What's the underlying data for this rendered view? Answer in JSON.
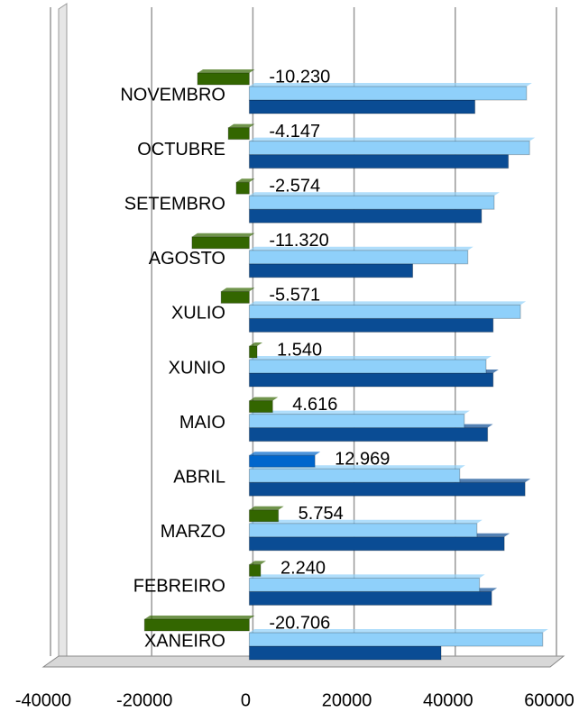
{
  "chart_data": {
    "type": "bar",
    "orientation": "horizontal",
    "categories": [
      "XANEIRO",
      "FEBREIRO",
      "MARZO",
      "ABRIL",
      "MAIO",
      "XUNIO",
      "XULIO",
      "AGOSTO",
      "SETEMBRO",
      "OCTUBRE",
      "NOVEMBRO"
    ],
    "series": [
      {
        "color": "#336600",
        "colors": [
          "#336600",
          "#336600",
          "#336600",
          "#0066cc",
          "#336600",
          "#336600",
          "#336600",
          "#336600",
          "#336600",
          "#336600",
          "#336600"
        ],
        "values": [
          -20706,
          2240,
          5754,
          12969,
          4616,
          1540,
          -5571,
          -11320,
          -2574,
          -4147,
          -10230
        ],
        "value_labels": [
          "-20.706",
          "2.240",
          "5.754",
          "12.969",
          "4.616",
          "1.540",
          "-5.571",
          "-11.320",
          "-2.574",
          "-4.147",
          "-10.230"
        ]
      },
      {
        "color": "#8fd0fa",
        "values": [
          58000,
          45500,
          45000,
          41600,
          42500,
          46800,
          53600,
          43200,
          48400,
          55400,
          54800
        ]
      },
      {
        "color": "#0a4c94",
        "values": [
          37900,
          47900,
          50400,
          54500,
          47100,
          48200,
          48200,
          32300,
          45900,
          51200,
          44600
        ]
      }
    ],
    "xlim": [
      -40000,
      60000
    ],
    "xticks": [
      -40000,
      -20000,
      0,
      20000,
      40000,
      60000
    ],
    "grid": true
  }
}
